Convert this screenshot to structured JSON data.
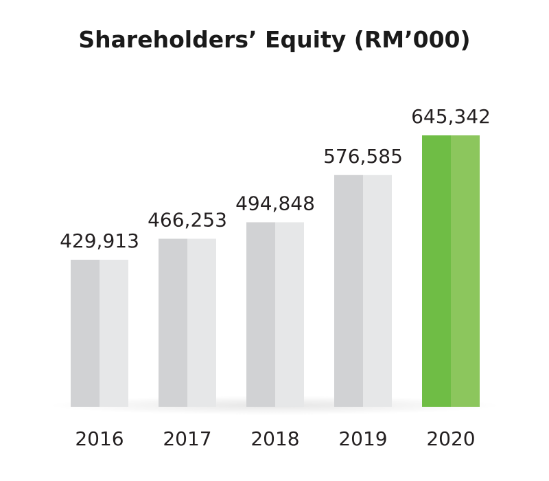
{
  "chart_data": {
    "type": "bar",
    "title": "Shareholders’ Equity (RM’000)",
    "categories": [
      "2016",
      "2017",
      "2018",
      "2019",
      "2020"
    ],
    "values": [
      429913,
      466253,
      494848,
      576585,
      645342
    ],
    "value_labels": [
      "429,913",
      "466,253",
      "494,848",
      "576,585",
      "645,342"
    ],
    "highlight_index": 4,
    "colors": {
      "bar_dark": "#d1d2d4",
      "bar_light": "#e6e7e8",
      "highlight_dark": "#6fbd45",
      "highlight_light": "#8cc65d",
      "label": "#231f20"
    },
    "xlabel": "",
    "ylabel": "",
    "grid": false,
    "legend": "none"
  }
}
